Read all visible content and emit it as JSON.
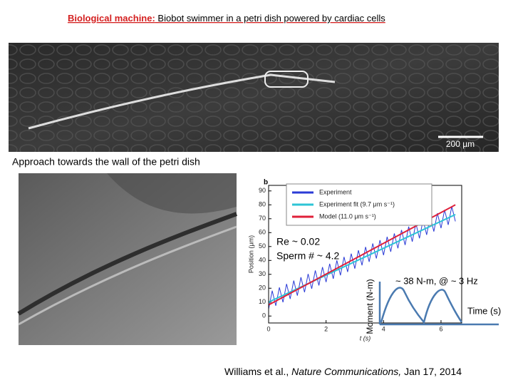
{
  "header": {
    "label": "Biological machine:",
    "title": " Biobot swimmer in a petri dish powered by cardiac cells"
  },
  "top_image": {
    "scale_bar": "200 µm"
  },
  "caption": "Approach towards the wall of the petri dish",
  "chart": {
    "panel": "b",
    "type": "line",
    "ylabel": "Position (μm)",
    "xlabel": "t (s)",
    "xlim": [
      0,
      6.72
    ],
    "ylim": [
      -5,
      94
    ],
    "xticks": [
      0,
      2,
      4,
      6
    ],
    "yticks": [
      0,
      10,
      20,
      30,
      40,
      50,
      60,
      70,
      80,
      90
    ],
    "series": [
      {
        "name": "Experiment",
        "color": "#2b3bd6",
        "width": 1,
        "x": [
          0,
          0.125,
          0.25,
          0.375,
          0.5,
          0.625,
          0.75,
          0.875,
          1,
          1.125,
          1.25,
          1.375,
          1.5,
          1.625,
          1.75,
          1.875,
          2,
          2.125,
          2.25,
          2.375,
          2.5,
          2.625,
          2.75,
          2.875,
          3,
          3.125,
          3.25,
          3.375,
          3.5,
          3.625,
          3.75,
          3.875,
          4,
          4.125,
          4.25,
          4.375,
          4.5,
          4.625,
          4.75,
          4.875,
          5,
          5.125,
          5.25,
          5.375,
          5.5,
          5.625,
          5.75,
          5.875,
          6,
          6.125,
          6.25,
          6.375,
          6.5
        ],
        "values": [
          5,
          18.2,
          7.4,
          20.6,
          9.9,
          23.1,
          12.3,
          25.5,
          14.7,
          27.9,
          17.1,
          30.3,
          19.6,
          32.8,
          22,
          35.2,
          24.4,
          37.6,
          26.8,
          40,
          29.3,
          42.5,
          31.7,
          44.9,
          34.1,
          47.3,
          36.5,
          49.7,
          39,
          52.2,
          41.4,
          54.6,
          43.8,
          57,
          46.2,
          59.4,
          48.7,
          61.9,
          51.1,
          64.3,
          53.5,
          66.7,
          55.9,
          69.1,
          58.4,
          71.6,
          60.8,
          74,
          63.2,
          76.4,
          65.6,
          78.8,
          68.1
        ]
      },
      {
        "name": "Experiment fit (9.7 μm s⁻¹)",
        "color": "#2ec4d6",
        "width": 2,
        "x": [
          0,
          6.5
        ],
        "values": [
          10,
          73
        ]
      },
      {
        "name": "Model (11.0 μm s⁻¹)",
        "color": "#e0203a",
        "width": 2,
        "x": [
          0,
          6.5
        ],
        "values": [
          8,
          80
        ]
      }
    ],
    "annotations": [
      "Re ~ 0.02",
      "Sperm # ~ 4.2"
    ],
    "inset": {
      "title": "~ 38 N-m, @ ~ 3 Hz",
      "ylabel": "Moment (N-m)",
      "xlabel": "Time (s)"
    }
  },
  "citation": {
    "authors": "Williams et al., ",
    "journal": "Nature Communications,",
    "date": " Jan 17, 2014"
  }
}
